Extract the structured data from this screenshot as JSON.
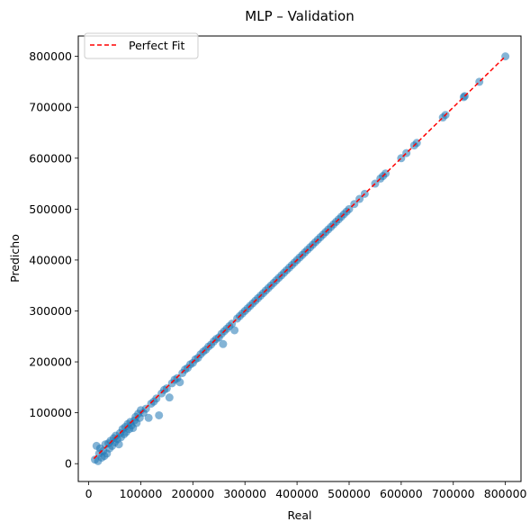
{
  "chart_data": {
    "type": "scatter",
    "title": "MLP – Validation",
    "xlabel": "Real",
    "ylabel": "Predicho",
    "xlim": [
      -20000,
      830000
    ],
    "ylim": [
      -35000,
      840000
    ],
    "xticks": [
      0,
      100000,
      200000,
      300000,
      400000,
      500000,
      600000,
      700000,
      800000
    ],
    "yticks": [
      0,
      100000,
      200000,
      300000,
      400000,
      500000,
      600000,
      700000,
      800000
    ],
    "grid": false,
    "legend": {
      "placement": "top-left",
      "entries": [
        "Perfect Fit"
      ]
    },
    "colors": {
      "points": "#1f77b4",
      "fit_line": "#ff0000"
    },
    "fit_line": {
      "name": "Perfect Fit",
      "x": [
        10000,
        800000
      ],
      "y": [
        10000,
        800000
      ]
    },
    "series": [
      {
        "points": [
          [
            12000,
            8000
          ],
          [
            15000,
            35000
          ],
          [
            18000,
            5000
          ],
          [
            20000,
            20000
          ],
          [
            22000,
            30000
          ],
          [
            25000,
            12000
          ],
          [
            28000,
            25000
          ],
          [
            30000,
            15000
          ],
          [
            32000,
            38000
          ],
          [
            35000,
            20000
          ],
          [
            38000,
            40000
          ],
          [
            40000,
            30000
          ],
          [
            42000,
            45000
          ],
          [
            45000,
            35000
          ],
          [
            48000,
            50000
          ],
          [
            50000,
            42000
          ],
          [
            52000,
            55000
          ],
          [
            55000,
            48000
          ],
          [
            58000,
            38000
          ],
          [
            60000,
            60000
          ],
          [
            62000,
            52000
          ],
          [
            65000,
            68000
          ],
          [
            68000,
            58000
          ],
          [
            70000,
            72000
          ],
          [
            72000,
            62000
          ],
          [
            75000,
            78000
          ],
          [
            78000,
            68000
          ],
          [
            80000,
            82000
          ],
          [
            82000,
            75000
          ],
          [
            85000,
            70000
          ],
          [
            88000,
            85000
          ],
          [
            90000,
            92000
          ],
          [
            92000,
            80000
          ],
          [
            95000,
            98000
          ],
          [
            98000,
            90000
          ],
          [
            100000,
            105000
          ],
          [
            105000,
            100000
          ],
          [
            110000,
            108000
          ],
          [
            115000,
            90000
          ],
          [
            120000,
            118000
          ],
          [
            125000,
            122000
          ],
          [
            130000,
            128000
          ],
          [
            135000,
            95000
          ],
          [
            140000,
            138000
          ],
          [
            145000,
            145000
          ],
          [
            150000,
            148000
          ],
          [
            155000,
            130000
          ],
          [
            160000,
            158000
          ],
          [
            165000,
            165000
          ],
          [
            170000,
            168000
          ],
          [
            175000,
            160000
          ],
          [
            180000,
            178000
          ],
          [
            185000,
            185000
          ],
          [
            190000,
            188000
          ],
          [
            195000,
            195000
          ],
          [
            200000,
            198000
          ],
          [
            205000,
            205000
          ],
          [
            210000,
            208000
          ],
          [
            215000,
            215000
          ],
          [
            220000,
            220000
          ],
          [
            225000,
            224000
          ],
          [
            230000,
            230000
          ],
          [
            235000,
            234000
          ],
          [
            240000,
            240000
          ],
          [
            245000,
            245000
          ],
          [
            250000,
            248000
          ],
          [
            255000,
            255000
          ],
          [
            258000,
            235000
          ],
          [
            260000,
            260000
          ],
          [
            265000,
            265000
          ],
          [
            270000,
            270000
          ],
          [
            275000,
            275000
          ],
          [
            280000,
            262000
          ],
          [
            285000,
            285000
          ],
          [
            290000,
            290000
          ],
          [
            295000,
            295000
          ],
          [
            300000,
            300000
          ],
          [
            305000,
            305000
          ],
          [
            310000,
            310000
          ],
          [
            315000,
            315000
          ],
          [
            320000,
            320000
          ],
          [
            325000,
            325000
          ],
          [
            330000,
            330000
          ],
          [
            335000,
            335000
          ],
          [
            340000,
            340000
          ],
          [
            345000,
            345000
          ],
          [
            350000,
            350000
          ],
          [
            355000,
            355000
          ],
          [
            360000,
            360000
          ],
          [
            365000,
            365000
          ],
          [
            370000,
            370000
          ],
          [
            375000,
            375000
          ],
          [
            380000,
            380000
          ],
          [
            385000,
            385000
          ],
          [
            390000,
            390000
          ],
          [
            395000,
            395000
          ],
          [
            400000,
            400000
          ],
          [
            405000,
            405000
          ],
          [
            410000,
            410000
          ],
          [
            415000,
            415000
          ],
          [
            420000,
            420000
          ],
          [
            425000,
            425000
          ],
          [
            430000,
            430000
          ],
          [
            435000,
            435000
          ],
          [
            440000,
            440000
          ],
          [
            445000,
            445000
          ],
          [
            450000,
            450000
          ],
          [
            455000,
            455000
          ],
          [
            460000,
            460000
          ],
          [
            465000,
            465000
          ],
          [
            470000,
            470000
          ],
          [
            475000,
            475000
          ],
          [
            480000,
            480000
          ],
          [
            485000,
            485000
          ],
          [
            490000,
            490000
          ],
          [
            495000,
            495000
          ],
          [
            500000,
            500000
          ],
          [
            510000,
            510000
          ],
          [
            520000,
            520000
          ],
          [
            530000,
            530000
          ],
          [
            550000,
            550000
          ],
          [
            560000,
            560000
          ],
          [
            565000,
            565000
          ],
          [
            570000,
            570000
          ],
          [
            600000,
            600000
          ],
          [
            610000,
            610000
          ],
          [
            625000,
            625000
          ],
          [
            630000,
            630000
          ],
          [
            680000,
            680000
          ],
          [
            685000,
            685000
          ],
          [
            720000,
            720000
          ],
          [
            722000,
            722000
          ],
          [
            750000,
            750000
          ],
          [
            800000,
            800000
          ]
        ]
      }
    ]
  }
}
